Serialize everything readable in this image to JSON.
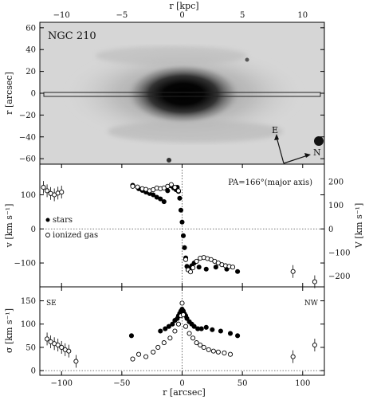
{
  "figure": {
    "galaxy_label": "NGC 210",
    "top_axis_label": "r [kpc]",
    "top_ticks": [
      -10,
      -5,
      0,
      5,
      10
    ],
    "image_ylabel": "r [arcsec]",
    "image_yticks": [
      60,
      40,
      20,
      0,
      -20,
      -40,
      -60
    ],
    "compass": {
      "east": "E",
      "north": "N"
    },
    "bottom_axis_label": "r [arcsec]",
    "bottom_ticks": [
      -100,
      -50,
      0,
      50,
      100
    ]
  },
  "chart_data": [
    {
      "type": "image",
      "panel": "image",
      "title": "NGC 210",
      "ylabel": "r [arcsec]",
      "ylim": [
        -65,
        65
      ],
      "xlim": [
        -118,
        118
      ],
      "slit": {
        "from": -118,
        "to": 118,
        "width_arcsec": 3
      }
    },
    {
      "type": "scatter",
      "panel": "velocity",
      "annotation": "PA=166°(major axis)",
      "ylabel": "v [km s⁻¹]",
      "ylabel_right": "V [km s⁻¹]",
      "ylim": [
        -170,
        190
      ],
      "xlim": [
        -118,
        118
      ],
      "yticks": [
        -100,
        0,
        100
      ],
      "right_ticks": [
        -200,
        -100,
        0,
        100,
        200
      ],
      "series": [
        {
          "name": "stars",
          "marker": "filled",
          "points": [
            [
              -41,
              128
            ],
            [
              -36,
              118
            ],
            [
              -33,
              113
            ],
            [
              -30,
              108
            ],
            [
              -27,
              104
            ],
            [
              -24,
              100
            ],
            [
              -21,
              93
            ],
            [
              -18,
              88
            ],
            [
              -15,
              80
            ],
            [
              -12,
              112
            ],
            [
              -9,
              126
            ],
            [
              -7,
              120
            ],
            [
              -5,
              115
            ],
            [
              -4,
              122
            ],
            [
              -3,
              110
            ],
            [
              -2,
              90
            ],
            [
              -1,
              55
            ],
            [
              0,
              20
            ],
            [
              1,
              -20
            ],
            [
              2,
              -55
            ],
            [
              3,
              -85
            ],
            [
              4,
              -110
            ],
            [
              5,
              -120
            ],
            [
              6,
              -116
            ],
            [
              8,
              -108
            ],
            [
              10,
              -100
            ],
            [
              14,
              -112
            ],
            [
              20,
              -118
            ],
            [
              28,
              -112
            ],
            [
              37,
              -118
            ],
            [
              46,
              -125
            ]
          ]
        },
        {
          "name": "ionized gas",
          "marker": "open",
          "points": [
            [
              -115,
              122
            ],
            [
              -112,
              112
            ],
            [
              -109,
              104
            ],
            [
              -106,
              100
            ],
            [
              -103,
              105
            ],
            [
              -100,
              108
            ],
            [
              -41,
              125
            ],
            [
              -37,
              123
            ],
            [
              -33,
              118
            ],
            [
              -30,
              116
            ],
            [
              -27,
              112
            ],
            [
              -24,
              115
            ],
            [
              -21,
              120
            ],
            [
              -18,
              118
            ],
            [
              -15,
              120
            ],
            [
              -12,
              125
            ],
            [
              -9,
              130
            ],
            [
              -6,
              122
            ],
            [
              -3,
              112
            ],
            [
              3,
              -90
            ],
            [
              5,
              -120
            ],
            [
              7,
              -126
            ],
            [
              9,
              -114
            ],
            [
              12,
              -95
            ],
            [
              15,
              -86
            ],
            [
              18,
              -84
            ],
            [
              21,
              -87
            ],
            [
              24,
              -90
            ],
            [
              27,
              -95
            ],
            [
              30,
              -100
            ],
            [
              33,
              -105
            ],
            [
              36,
              -108
            ],
            [
              39,
              -110
            ],
            [
              42,
              -112
            ],
            [
              92,
              -125
            ],
            [
              110,
              -155
            ]
          ]
        }
      ]
    },
    {
      "type": "scatter",
      "panel": "dispersion",
      "ylabel": "σ [km s⁻¹]",
      "ylim": [
        -10,
        180
      ],
      "xlim": [
        -118,
        118
      ],
      "yticks": [
        0,
        50,
        100,
        150
      ],
      "side_labels": {
        "left": "SE",
        "right": "NW"
      },
      "series": [
        {
          "name": "stars",
          "marker": "filled",
          "points": [
            [
              -42,
              75
            ],
            [
              -18,
              85
            ],
            [
              -14,
              90
            ],
            [
              -11,
              95
            ],
            [
              -8,
              100
            ],
            [
              -6,
              108
            ],
            [
              -4,
              112
            ],
            [
              -3,
              118
            ],
            [
              -2,
              123
            ],
            [
              -1,
              128
            ],
            [
              0,
              132
            ],
            [
              1,
              128
            ],
            [
              2,
              122
            ],
            [
              3,
              118
            ],
            [
              4,
              112
            ],
            [
              6,
              105
            ],
            [
              8,
              100
            ],
            [
              10,
              95
            ],
            [
              13,
              90
            ],
            [
              16,
              90
            ],
            [
              20,
              93
            ],
            [
              25,
              88
            ],
            [
              32,
              85
            ],
            [
              40,
              80
            ],
            [
              46,
              75
            ]
          ]
        },
        {
          "name": "ionized gas",
          "marker": "open",
          "points": [
            [
              -112,
              68
            ],
            [
              -109,
              62
            ],
            [
              -106,
              58
            ],
            [
              -103,
              55
            ],
            [
              -100,
              50
            ],
            [
              -97,
              45
            ],
            [
              -94,
              42
            ],
            [
              -88,
              20
            ],
            [
              -41,
              25
            ],
            [
              -36,
              35
            ],
            [
              -30,
              30
            ],
            [
              -24,
              40
            ],
            [
              -20,
              50
            ],
            [
              -15,
              60
            ],
            [
              -10,
              70
            ],
            [
              -6,
              85
            ],
            [
              -3,
              100
            ],
            [
              -1,
              118
            ],
            [
              0,
              145
            ],
            [
              1,
              120
            ],
            [
              3,
              95
            ],
            [
              6,
              80
            ],
            [
              9,
              70
            ],
            [
              12,
              60
            ],
            [
              15,
              55
            ],
            [
              18,
              50
            ],
            [
              22,
              45
            ],
            [
              26,
              42
            ],
            [
              30,
              40
            ],
            [
              35,
              38
            ],
            [
              40,
              35
            ],
            [
              92,
              30
            ],
            [
              110,
              55
            ]
          ]
        }
      ]
    }
  ]
}
